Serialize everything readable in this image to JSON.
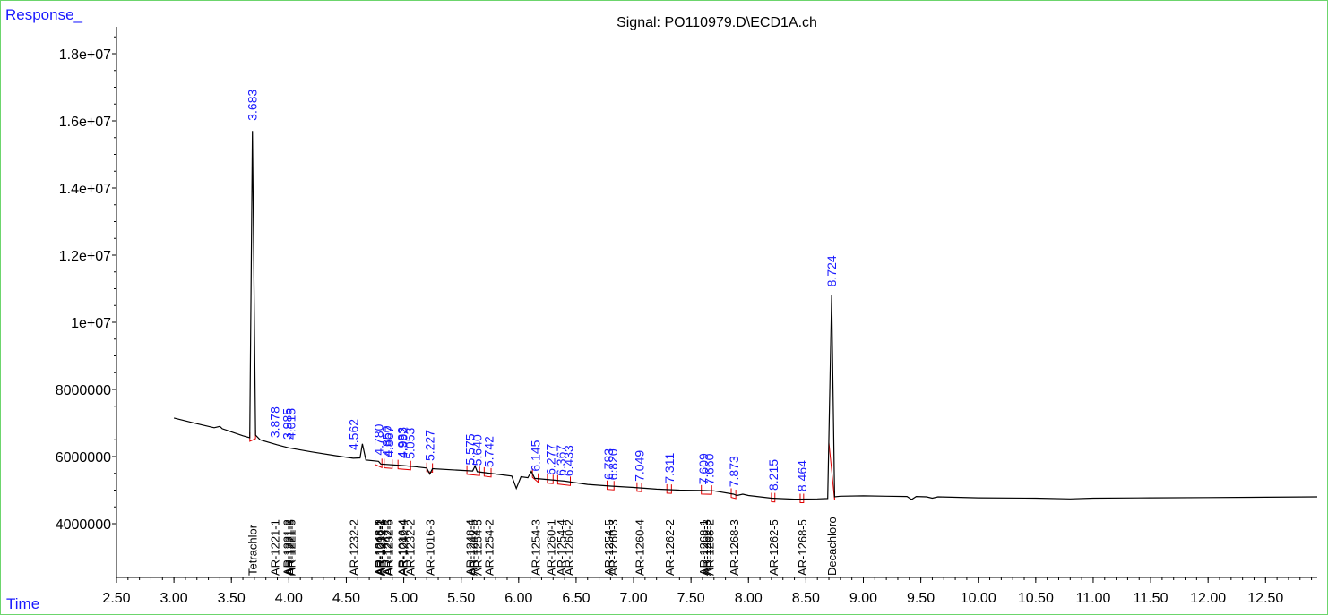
{
  "header": {
    "y_caption": "Response_",
    "x_caption": "Time",
    "signal_title": "Signal: PO110979.D\\ECD1A.ch"
  },
  "chart_data": {
    "type": "line",
    "title": "Signal: PO110979.D\\ECD1A.ch",
    "xlabel": "Time",
    "ylabel": "Response_",
    "xlim": [
      2.5,
      12.95
    ],
    "ylim": [
      2400000,
      18800000
    ],
    "x_ticks": [
      "2.50",
      "3.00",
      "3.50",
      "4.00",
      "4.50",
      "5.00",
      "5.50",
      "6.00",
      "6.50",
      "7.00",
      "7.50",
      "8.00",
      "8.50",
      "9.00",
      "9.50",
      "10.00",
      "10.50",
      "11.00",
      "11.50",
      "12.00",
      "12.50"
    ],
    "y_ticks": [
      {
        "value": 4000000,
        "label": "4000000"
      },
      {
        "value": 6000000,
        "label": "6000000"
      },
      {
        "value": 8000000,
        "label": "8000000"
      },
      {
        "value": 10000000,
        "label": "1e+07"
      },
      {
        "value": 12000000,
        "label": "1.2e+07"
      },
      {
        "value": 14000000,
        "label": "1.4e+07"
      },
      {
        "value": 16000000,
        "label": "1.6e+07"
      },
      {
        "value": 18000000,
        "label": "1.8e+07"
      }
    ],
    "trace": [
      [
        3.0,
        7150000
      ],
      [
        3.2,
        6980000
      ],
      [
        3.35,
        6860000
      ],
      [
        3.4,
        6900000
      ],
      [
        3.42,
        6830000
      ],
      [
        3.6,
        6620000
      ],
      [
        3.66,
        6560000
      ],
      [
        3.683,
        15700000
      ],
      [
        3.71,
        6640000
      ],
      [
        3.75,
        6500000
      ],
      [
        3.9,
        6350000
      ],
      [
        4.0,
        6260000
      ],
      [
        4.2,
        6140000
      ],
      [
        4.4,
        6030000
      ],
      [
        4.56,
        5950000
      ],
      [
        4.62,
        5960000
      ],
      [
        4.64,
        6380000
      ],
      [
        4.67,
        5900000
      ],
      [
        4.78,
        5860000
      ],
      [
        4.8,
        5780000
      ],
      [
        5.0,
        5730000
      ],
      [
        5.1,
        5700000
      ],
      [
        5.2,
        5660000
      ],
      [
        5.227,
        5480000
      ],
      [
        5.25,
        5640000
      ],
      [
        5.5,
        5590000
      ],
      [
        5.6,
        5570000
      ],
      [
        5.62,
        5720000
      ],
      [
        5.64,
        5550000
      ],
      [
        5.8,
        5480000
      ],
      [
        5.94,
        5420000
      ],
      [
        5.98,
        5050000
      ],
      [
        6.02,
        5400000
      ],
      [
        6.08,
        5370000
      ],
      [
        6.11,
        5560000
      ],
      [
        6.14,
        5350000
      ],
      [
        6.4,
        5270000
      ],
      [
        6.6,
        5170000
      ],
      [
        6.8,
        5120000
      ],
      [
        7.0,
        5080000
      ],
      [
        7.2,
        5030000
      ],
      [
        7.4,
        5000000
      ],
      [
        7.6,
        4990000
      ],
      [
        7.7,
        4980000
      ],
      [
        7.87,
        4880000
      ],
      [
        7.9,
        4840000
      ],
      [
        7.95,
        4880000
      ],
      [
        8.0,
        4840000
      ],
      [
        8.2,
        4760000
      ],
      [
        8.4,
        4730000
      ],
      [
        8.6,
        4740000
      ],
      [
        8.69,
        4750000
      ],
      [
        8.724,
        10800000
      ],
      [
        8.75,
        4800000
      ],
      [
        8.8,
        4820000
      ],
      [
        9.0,
        4830000
      ],
      [
        9.2,
        4820000
      ],
      [
        9.38,
        4810000
      ],
      [
        9.42,
        4720000
      ],
      [
        9.46,
        4810000
      ],
      [
        9.55,
        4800000
      ],
      [
        9.6,
        4760000
      ],
      [
        9.65,
        4800000
      ],
      [
        10.0,
        4770000
      ],
      [
        10.5,
        4760000
      ],
      [
        10.8,
        4740000
      ],
      [
        11.0,
        4760000
      ],
      [
        11.5,
        4770000
      ],
      [
        12.0,
        4780000
      ],
      [
        12.5,
        4790000
      ],
      [
        12.95,
        4800000
      ]
    ],
    "peak_labels": [
      {
        "x": 3.683,
        "y": 15900000,
        "label": "3.683"
      },
      {
        "x": 3.878,
        "y": 6450000,
        "label": "3.878"
      },
      {
        "x": 3.985,
        "y": 6400000,
        "label": "3.985"
      },
      {
        "x": 4.015,
        "y": 6400000,
        "label": "4.015"
      },
      {
        "x": 4.562,
        "y": 6080000,
        "label": "4.562"
      },
      {
        "x": 4.78,
        "y": 5930000,
        "label": "4.780"
      },
      {
        "x": 4.85,
        "y": 5880000,
        "label": "4.850"
      },
      {
        "x": 4.87,
        "y": 5870000,
        "label": "4.867"
      },
      {
        "x": 4.983,
        "y": 5840000,
        "label": "4.983"
      },
      {
        "x": 4.992,
        "y": 5840000,
        "label": "4.992"
      },
      {
        "x": 5.053,
        "y": 5820000,
        "label": "5.053"
      },
      {
        "x": 5.227,
        "y": 5760000,
        "label": "5.227"
      },
      {
        "x": 5.575,
        "y": 5640000,
        "label": "5.575"
      },
      {
        "x": 5.64,
        "y": 5620000,
        "label": "5.640"
      },
      {
        "x": 5.742,
        "y": 5570000,
        "label": "5.742"
      },
      {
        "x": 6.145,
        "y": 5450000,
        "label": "6.145"
      },
      {
        "x": 6.277,
        "y": 5340000,
        "label": "6.277"
      },
      {
        "x": 6.367,
        "y": 5310000,
        "label": "6.367"
      },
      {
        "x": 6.433,
        "y": 5300000,
        "label": "6.433"
      },
      {
        "x": 6.783,
        "y": 5200000,
        "label": "6.783"
      },
      {
        "x": 6.82,
        "y": 5190000,
        "label": "6.820"
      },
      {
        "x": 7.049,
        "y": 5150000,
        "label": "7.049"
      },
      {
        "x": 7.311,
        "y": 5100000,
        "label": "7.311"
      },
      {
        "x": 7.609,
        "y": 5060000,
        "label": "7.609"
      },
      {
        "x": 7.66,
        "y": 5050000,
        "label": "7.660"
      },
      {
        "x": 7.873,
        "y": 4980000,
        "label": "7.873"
      },
      {
        "x": 8.215,
        "y": 4880000,
        "label": "8.215"
      },
      {
        "x": 8.464,
        "y": 4850000,
        "label": "8.464"
      },
      {
        "x": 8.724,
        "y": 10950000,
        "label": "8.724"
      }
    ],
    "compound_labels": [
      {
        "x": 3.683,
        "label": "Tetrachlor"
      },
      {
        "x": 3.878,
        "label": "AR-1221-1"
      },
      {
        "x": 3.985,
        "label": "AR-1221-2"
      },
      {
        "x": 4.0,
        "label": "AR-1221-3"
      },
      {
        "x": 4.015,
        "label": "AR-1221-5"
      },
      {
        "x": 4.562,
        "label": "AR-1232-2"
      },
      {
        "x": 4.78,
        "label": "AR-1248-2"
      },
      {
        "x": 4.79,
        "label": "AR-1016-1"
      },
      {
        "x": 4.8,
        "label": "AR-1232-3"
      },
      {
        "x": 4.85,
        "label": "AR-1242-3"
      },
      {
        "x": 4.867,
        "label": "AR-1232-5"
      },
      {
        "x": 4.983,
        "label": "AR-1016-4"
      },
      {
        "x": 4.992,
        "label": "AR-1242-4"
      },
      {
        "x": 5.053,
        "label": "AR-1232-2"
      },
      {
        "x": 5.227,
        "label": "AR-1016-3"
      },
      {
        "x": 5.575,
        "label": "AR-1248-4"
      },
      {
        "x": 5.6,
        "label": "AR-1242-5"
      },
      {
        "x": 5.64,
        "label": "AR-1254-5"
      },
      {
        "x": 5.742,
        "label": "AR-1254-2"
      },
      {
        "x": 6.145,
        "label": "AR-1254-3"
      },
      {
        "x": 6.277,
        "label": "AR-1260-1"
      },
      {
        "x": 6.367,
        "label": "AR-1254-4"
      },
      {
        "x": 6.433,
        "label": "AR-1260-2"
      },
      {
        "x": 6.783,
        "label": "AR-1254-5"
      },
      {
        "x": 6.82,
        "label": "AR-1260-3"
      },
      {
        "x": 7.049,
        "label": "AR-1260-4"
      },
      {
        "x": 7.311,
        "label": "AR-1262-2"
      },
      {
        "x": 7.609,
        "label": "AR-1268-1"
      },
      {
        "x": 7.63,
        "label": "AR-1262-3"
      },
      {
        "x": 7.66,
        "label": "AR-1268-2"
      },
      {
        "x": 7.873,
        "label": "AR-1268-3"
      },
      {
        "x": 8.215,
        "label": "AR-1262-5"
      },
      {
        "x": 8.464,
        "label": "AR-1268-5"
      },
      {
        "x": 8.724,
        "label": "Decachloro"
      }
    ],
    "baseline_markers": [
      {
        "x0": 3.66,
        "x1": 3.71
      },
      {
        "x0": 4.75,
        "x1": 4.81
      },
      {
        "x0": 4.83,
        "x1": 4.9
      },
      {
        "x0": 4.95,
        "x1": 5.06
      },
      {
        "x0": 5.2,
        "x1": 5.25
      },
      {
        "x0": 5.55,
        "x1": 5.66
      },
      {
        "x0": 5.7,
        "x1": 5.76
      },
      {
        "x0": 6.12,
        "x1": 6.17
      },
      {
        "x0": 6.25,
        "x1": 6.3
      },
      {
        "x0": 6.34,
        "x1": 6.45
      },
      {
        "x0": 6.77,
        "x1": 6.83
      },
      {
        "x0": 7.03,
        "x1": 7.07
      },
      {
        "x0": 7.29,
        "x1": 7.33
      },
      {
        "x0": 7.59,
        "x1": 7.68
      },
      {
        "x0": 7.85,
        "x1": 7.89
      },
      {
        "x0": 8.2,
        "x1": 8.23
      },
      {
        "x0": 8.45,
        "x1": 8.48
      },
      {
        "x0": 8.7,
        "x1": 8.75
      }
    ]
  }
}
